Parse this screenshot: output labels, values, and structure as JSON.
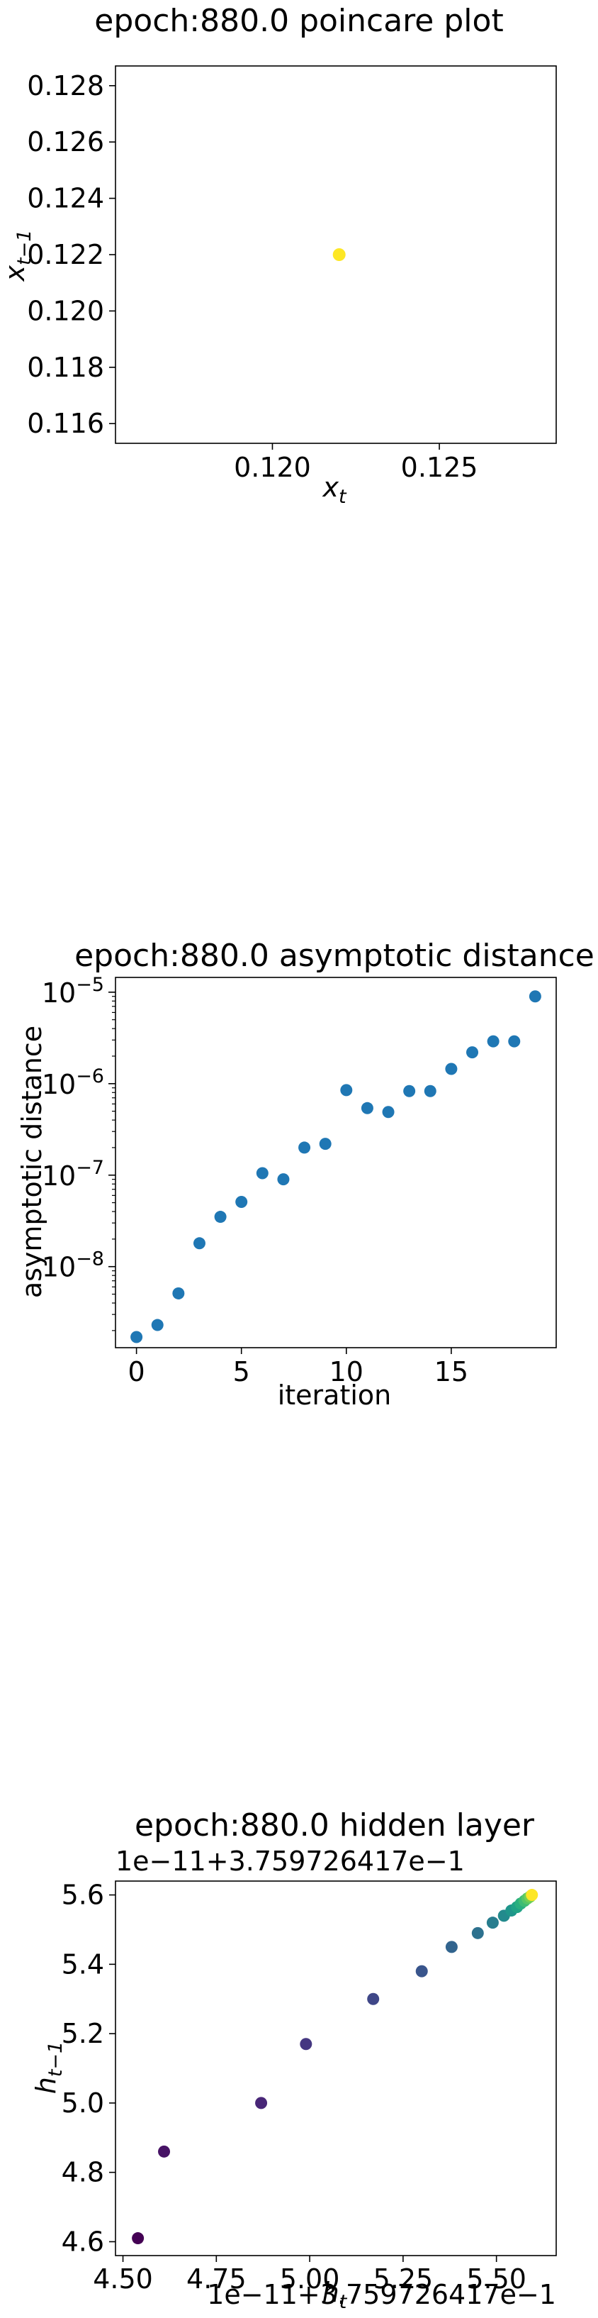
{
  "chart_data": [
    {
      "type": "scatter",
      "title": "epoch:880.0 poincare plot",
      "xlabel": "x",
      "xlabel_sub": "t",
      "ylabel": "x",
      "ylabel_sub": "t−1",
      "xlim": [
        0.1153,
        0.1285
      ],
      "ylim": [
        0.1153,
        0.1287
      ],
      "xticks": [
        {
          "v": 0.12,
          "label": "0.120"
        },
        {
          "v": 0.125,
          "label": "0.125"
        }
      ],
      "yticks": [
        {
          "v": 0.116,
          "label": "0.116"
        },
        {
          "v": 0.118,
          "label": "0.118"
        },
        {
          "v": 0.12,
          "label": "0.120"
        },
        {
          "v": 0.122,
          "label": "0.122"
        },
        {
          "v": 0.124,
          "label": "0.124"
        },
        {
          "v": 0.126,
          "label": "0.126"
        },
        {
          "v": 0.128,
          "label": "0.128"
        }
      ],
      "points": [
        {
          "x": 0.122,
          "y": 0.122
        }
      ],
      "point_color": "#fde725"
    },
    {
      "type": "scatter",
      "title": "epoch:880.0 asymptotic distance",
      "xlabel": "iteration",
      "ylabel": "asymptotic distance",
      "y_scale": "log",
      "xlim": [
        -1,
        20
      ],
      "ylim": [
        1.3e-09,
        1.45e-05
      ],
      "xticks": [
        {
          "v": 0,
          "label": "0"
        },
        {
          "v": 5,
          "label": "5"
        },
        {
          "v": 10,
          "label": "10"
        },
        {
          "v": 15,
          "label": "15"
        }
      ],
      "yticks": [
        {
          "v": 1e-08,
          "base": "10",
          "exp": "−8"
        },
        {
          "v": 1e-07,
          "base": "10",
          "exp": "−7"
        },
        {
          "v": 1e-06,
          "base": "10",
          "exp": "−6"
        },
        {
          "v": 1e-05,
          "base": "10",
          "exp": "−5"
        }
      ],
      "x": [
        0,
        1,
        2,
        3,
        4,
        5,
        6,
        7,
        8,
        9,
        10,
        11,
        12,
        13,
        14,
        15,
        16,
        17,
        18,
        19
      ],
      "y": [
        1.7e-09,
        2.3e-09,
        5.1e-09,
        1.8e-08,
        3.5e-08,
        5.1e-08,
        1.05e-07,
        9e-08,
        2e-07,
        2.2e-07,
        8.5e-07,
        5.4e-07,
        4.9e-07,
        8.3e-07,
        8.3e-07,
        1.45e-06,
        2.2e-06,
        2.9e-06,
        2.9e-06,
        9e-06
      ],
      "point_color": "#1f77b4"
    },
    {
      "type": "scatter",
      "title": "epoch:880.0 hidden layer",
      "xlabel": "h",
      "xlabel_sub": "t",
      "ylabel": "h",
      "ylabel_sub": "t−1",
      "x_offset": "1e−11+3.759726417e−1",
      "y_offset": "1e−11+3.759726417e−1",
      "xlim": [
        4.48,
        5.66
      ],
      "ylim": [
        4.56,
        5.64
      ],
      "xticks": [
        {
          "v": 4.5,
          "label": "4.50"
        },
        {
          "v": 4.75,
          "label": "4.75"
        },
        {
          "v": 5.0,
          "label": "5.00"
        },
        {
          "v": 5.25,
          "label": "5.25"
        },
        {
          "v": 5.5,
          "label": "5.50"
        }
      ],
      "yticks": [
        {
          "v": 4.6,
          "label": "4.6"
        },
        {
          "v": 4.8,
          "label": "4.8"
        },
        {
          "v": 5.0,
          "label": "5.0"
        },
        {
          "v": 5.2,
          "label": "5.2"
        },
        {
          "v": 5.4,
          "label": "5.4"
        },
        {
          "v": 5.6,
          "label": "5.6"
        }
      ],
      "x": [
        4.54,
        4.61,
        4.87,
        4.99,
        5.17,
        5.3,
        5.38,
        5.45,
        5.49,
        5.52,
        5.54,
        5.555,
        5.565,
        5.575,
        5.583,
        5.59,
        5.595
      ],
      "y": [
        4.61,
        4.86,
        5.0,
        5.17,
        5.3,
        5.38,
        5.45,
        5.49,
        5.52,
        5.54,
        5.555,
        5.565,
        5.575,
        5.583,
        5.59,
        5.595,
        5.6
      ],
      "colors": [
        "#440154",
        "#471365",
        "#482677",
        "#453781",
        "#3f4788",
        "#39558c",
        "#32648e",
        "#2d718e",
        "#287d8e",
        "#238a8d",
        "#1f968b",
        "#20a386",
        "#29af7f",
        "#3dbc74",
        "#56c667",
        "#75d054",
        "#fde725"
      ]
    }
  ]
}
